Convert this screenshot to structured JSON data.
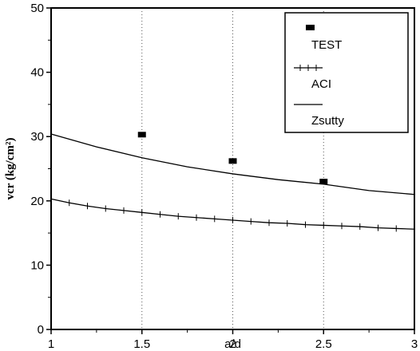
{
  "chart_data": {
    "type": "line",
    "title": "",
    "xlabel": "a/d",
    "ylabel": "vсr (kg/cm²)",
    "xlim": [
      1,
      3
    ],
    "ylim": [
      0,
      50
    ],
    "xticks": [
      1,
      1.5,
      2,
      2.5,
      3
    ],
    "xtick_labels": [
      "1",
      "1.5",
      "2",
      "2.5",
      "3"
    ],
    "yticks": [
      0,
      10,
      20,
      30,
      40,
      50
    ],
    "ytick_labels": [
      "0",
      "10",
      "20",
      "30",
      "40",
      "50"
    ],
    "grid": "vertical dotted lines at x = 1.5, 2, 2.5",
    "legend_position": "top-right",
    "series": [
      {
        "name": "TEST",
        "style": "square markers",
        "x": [
          1.5,
          2.0,
          2.5
        ],
        "y": [
          30.3,
          26.2,
          23.0
        ]
      },
      {
        "name": "ACI",
        "style": "line with + markers",
        "x": [
          1.0,
          1.1,
          1.2,
          1.3,
          1.4,
          1.5,
          1.6,
          1.7,
          1.8,
          1.9,
          2.0,
          2.1,
          2.2,
          2.3,
          2.4,
          2.5,
          2.6,
          2.7,
          2.8,
          2.9,
          3.0
        ],
        "y": [
          20.3,
          19.7,
          19.2,
          18.8,
          18.5,
          18.2,
          17.9,
          17.6,
          17.4,
          17.2,
          17.0,
          16.8,
          16.6,
          16.5,
          16.3,
          16.2,
          16.1,
          16.0,
          15.8,
          15.7,
          15.6
        ]
      },
      {
        "name": "Zsutty",
        "style": "solid line",
        "x": [
          1.0,
          1.25,
          1.5,
          1.75,
          2.0,
          2.25,
          2.5,
          2.75,
          3.0
        ],
        "y": [
          30.4,
          28.4,
          26.7,
          25.3,
          24.2,
          23.3,
          22.6,
          21.6,
          21.0
        ]
      }
    ],
    "colors": {
      "lines": "#000000",
      "grid": "#555555",
      "background": "#ffffff"
    }
  }
}
